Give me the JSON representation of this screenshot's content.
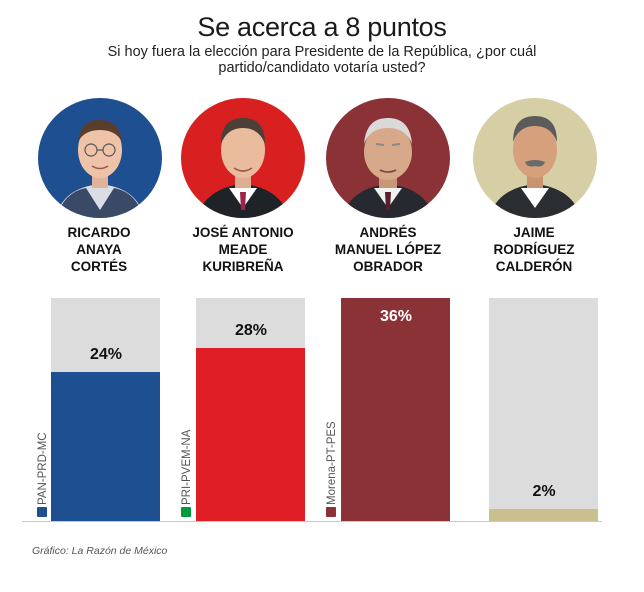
{
  "title": "Se acerca a 8 puntos",
  "subtitle": "Si hoy fuera la elección para Presidente de la República, ¿por cuál partido/candidato votaría usted?",
  "candidates": [
    {
      "name_line1": "RICARDO",
      "name_line2": "ANAYA",
      "name_line3": "CORTÉS",
      "parties": "PAN-PRD-MC",
      "color": "#1d4f91"
    },
    {
      "name_line1": "JOSÉ ANTONIO",
      "name_line2": "MEADE",
      "name_line3": "KURIBREÑA",
      "parties": "PRI-PVEM-NA",
      "color": "#e01e25"
    },
    {
      "name_line1": "ANDRÉS",
      "name_line2": "MANUEL LÓPEZ",
      "name_line3": "OBRADOR",
      "parties": "Morena-PT-PES",
      "color": "#8b3236"
    },
    {
      "name_line1": "JAIME",
      "name_line2": "RODRÍGUEZ",
      "name_line3": "CALDERÓN",
      "parties": "",
      "color": "#c9bf8f"
    }
  ],
  "chart_data": {
    "type": "bar",
    "categories": [
      "RICARDO ANAYA CORTÉS",
      "JOSÉ ANTONIO MEADE KURIBREÑA",
      "ANDRÉS MANUEL LÓPEZ OBRADOR",
      "JAIME RODRÍGUEZ CALDERÓN"
    ],
    "values": [
      24,
      28,
      36,
      2
    ],
    "value_labels": [
      "24%",
      "28%",
      "36%",
      "2%"
    ],
    "ylim": [
      0,
      36
    ],
    "colors": [
      "#1d4f91",
      "#e01e25",
      "#8b3236",
      "#c9bf8f"
    ],
    "background_color": "#dcdcdc",
    "grid": false,
    "legend": "none"
  },
  "credit": "Gráfico: La Razón de México"
}
